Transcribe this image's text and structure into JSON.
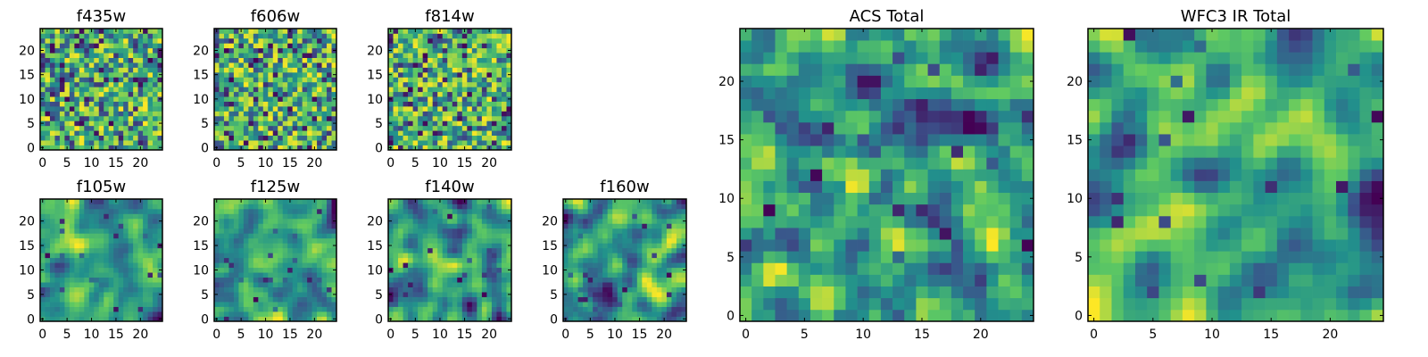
{
  "chart_data": [
    {
      "type": "heatmap",
      "title": "f435w",
      "xticks": [
        "0",
        "5",
        "10",
        "15",
        "20"
      ],
      "yticks": [
        "0",
        "5",
        "10",
        "15",
        "20"
      ],
      "xlim": [
        -0.5,
        24.5
      ],
      "ylim": [
        -0.5,
        24.5
      ],
      "colormap": "viridis",
      "grid_size": 25,
      "texture": "fine",
      "seed": 11
    },
    {
      "type": "heatmap",
      "title": "f606w",
      "xticks": [
        "0",
        "5",
        "10",
        "15",
        "20"
      ],
      "yticks": [
        "0",
        "5",
        "10",
        "15",
        "20"
      ],
      "xlim": [
        -0.5,
        24.5
      ],
      "ylim": [
        -0.5,
        24.5
      ],
      "colormap": "viridis",
      "grid_size": 25,
      "texture": "fine",
      "seed": 23
    },
    {
      "type": "heatmap",
      "title": "f814w",
      "xticks": [
        "0",
        "5",
        "10",
        "15",
        "20"
      ],
      "yticks": [
        "0",
        "5",
        "10",
        "15",
        "20"
      ],
      "xlim": [
        -0.5,
        24.5
      ],
      "ylim": [
        -0.5,
        24.5
      ],
      "colormap": "viridis",
      "grid_size": 25,
      "texture": "fine",
      "seed": 37
    },
    {
      "type": "heatmap",
      "title": "f105w",
      "xticks": [
        "0",
        "5",
        "10",
        "15",
        "20"
      ],
      "yticks": [
        "0",
        "5",
        "10",
        "15",
        "20"
      ],
      "xlim": [
        -0.5,
        24.5
      ],
      "ylim": [
        -0.5,
        24.5
      ],
      "colormap": "viridis",
      "grid_size": 25,
      "texture": "smooth",
      "seed": 41
    },
    {
      "type": "heatmap",
      "title": "f125w",
      "xticks": [
        "0",
        "5",
        "10",
        "15",
        "20"
      ],
      "yticks": [
        "0",
        "5",
        "10",
        "15",
        "20"
      ],
      "xlim": [
        -0.5,
        24.5
      ],
      "ylim": [
        -0.5,
        24.5
      ],
      "colormap": "viridis",
      "grid_size": 25,
      "texture": "smooth",
      "seed": 53
    },
    {
      "type": "heatmap",
      "title": "f140w",
      "xticks": [
        "0",
        "5",
        "10",
        "15",
        "20"
      ],
      "yticks": [
        "0",
        "5",
        "10",
        "15",
        "20"
      ],
      "xlim": [
        -0.5,
        24.5
      ],
      "ylim": [
        -0.5,
        24.5
      ],
      "colormap": "viridis",
      "grid_size": 25,
      "texture": "smooth",
      "seed": 67
    },
    {
      "type": "heatmap",
      "title": "f160w",
      "xticks": [
        "0",
        "5",
        "10",
        "15",
        "20"
      ],
      "yticks": [
        "0",
        "5",
        "10",
        "15",
        "20"
      ],
      "xlim": [
        -0.5,
        24.5
      ],
      "ylim": [
        -0.5,
        24.5
      ],
      "colormap": "viridis",
      "grid_size": 25,
      "texture": "smooth",
      "seed": 79
    },
    {
      "type": "heatmap",
      "title": "ACS Total",
      "xticks": [
        "0",
        "5",
        "10",
        "15",
        "20"
      ],
      "yticks": [
        "0",
        "5",
        "10",
        "15",
        "20"
      ],
      "xlim": [
        -0.5,
        24.5
      ],
      "ylim": [
        -0.5,
        24.5
      ],
      "colormap": "viridis",
      "grid_size": 25,
      "texture": "medium",
      "seed": 97
    },
    {
      "type": "heatmap",
      "title": "WFC3 IR Total",
      "xticks": [
        "0",
        "5",
        "10",
        "15",
        "20"
      ],
      "yticks": [
        "0",
        "5",
        "10",
        "15",
        "20"
      ],
      "xlim": [
        -0.5,
        24.5
      ],
      "ylim": [
        -0.5,
        24.5
      ],
      "colormap": "viridis",
      "grid_size": 25,
      "texture": "smooth",
      "seed": 113
    }
  ],
  "colors": {
    "viridis_stops": [
      "#440154",
      "#3b528b",
      "#21918c",
      "#5ec962",
      "#fde725"
    ]
  }
}
